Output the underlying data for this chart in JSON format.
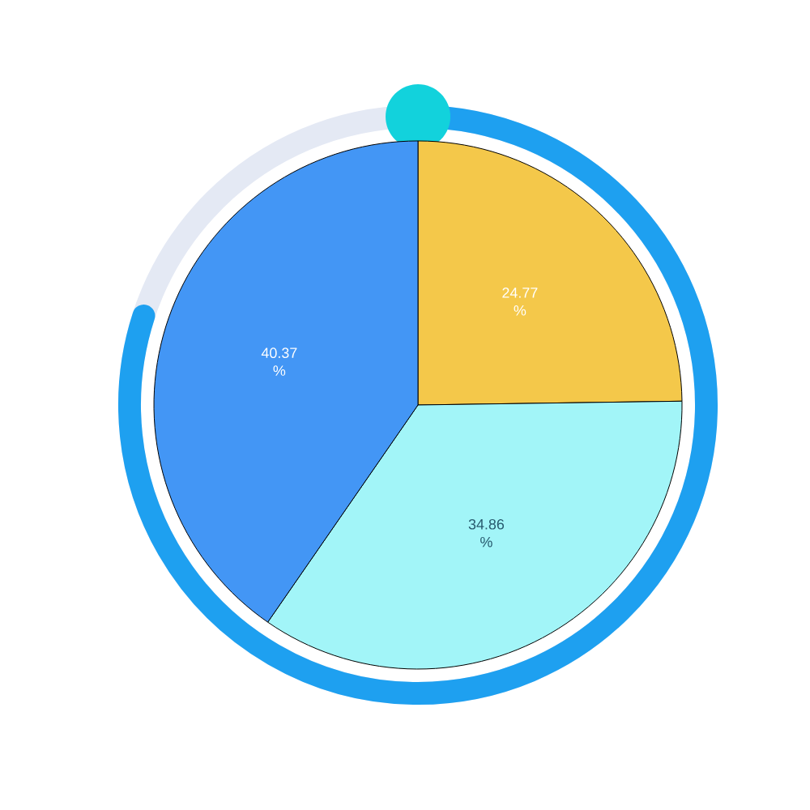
{
  "chart_data": {
    "type": "pie",
    "categories": [
      null,
      null,
      null
    ],
    "values": [
      24.77,
      34.86,
      40.37
    ],
    "colors": [
      "#f4c84a",
      "#a2f5f8",
      "#4396f5"
    ],
    "value_labels": [
      "24.77 %",
      "34.86 %",
      "40.37 %"
    ]
  }
}
